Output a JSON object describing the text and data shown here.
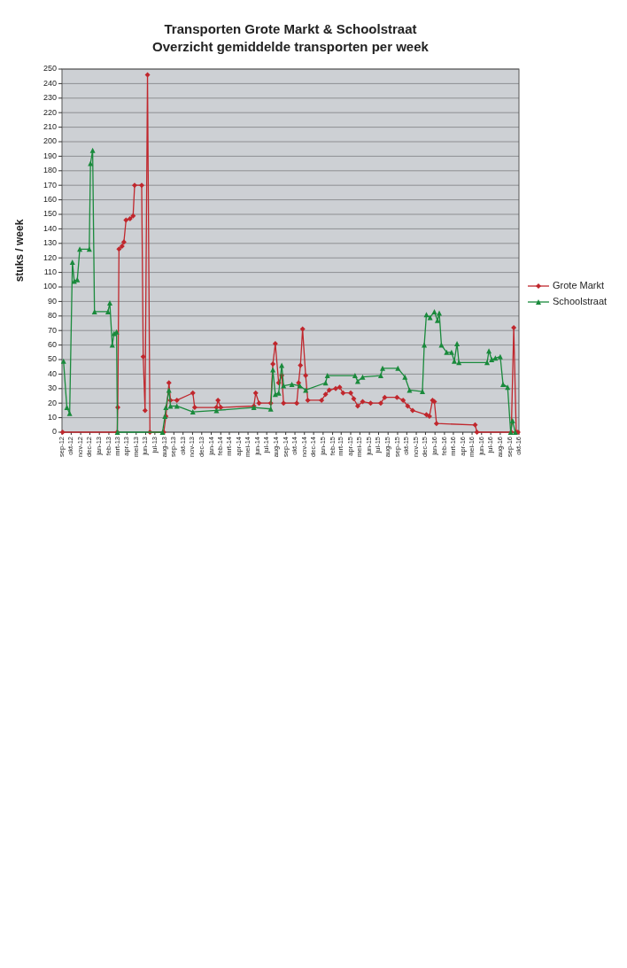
{
  "chart_data": {
    "type": "line",
    "title": "Transporten Grote Markt & Schoolstraat",
    "subtitle": "Overzicht gemiddelde transporten per week",
    "ylabel": "stuks / week",
    "grid": "y",
    "legend": "right",
    "xlim": [
      "2012-09",
      "2016-10"
    ],
    "xticks": [
      {
        "value": "2012-09",
        "label": "sep-12"
      },
      {
        "value": "2012-10",
        "label": "okt-12"
      },
      {
        "value": "2012-11",
        "label": "nov-12"
      },
      {
        "value": "2012-12",
        "label": "dec-12"
      },
      {
        "value": "2013-01",
        "label": "jan-13"
      },
      {
        "value": "2013-02",
        "label": "feb-13"
      },
      {
        "value": "2013-03",
        "label": "mrt-13"
      },
      {
        "value": "2013-04",
        "label": "apr-13"
      },
      {
        "value": "2013-05",
        "label": "mei-13"
      },
      {
        "value": "2013-06",
        "label": "jun-13"
      },
      {
        "value": "2013-07",
        "label": "jul-13"
      },
      {
        "value": "2013-08",
        "label": "aug-13"
      },
      {
        "value": "2013-09",
        "label": "sep-13"
      },
      {
        "value": "2013-10",
        "label": "okt-13"
      },
      {
        "value": "2013-11",
        "label": "nov-13"
      },
      {
        "value": "2013-12",
        "label": "dec-13"
      },
      {
        "value": "2014-01",
        "label": "jan-14"
      },
      {
        "value": "2014-02",
        "label": "feb-14"
      },
      {
        "value": "2014-03",
        "label": "mrt-14"
      },
      {
        "value": "2014-04",
        "label": "apr-14"
      },
      {
        "value": "2014-05",
        "label": "mei-14"
      },
      {
        "value": "2014-06",
        "label": "jun-14"
      },
      {
        "value": "2014-07",
        "label": "jul-14"
      },
      {
        "value": "2014-08",
        "label": "aug-14"
      },
      {
        "value": "2014-09",
        "label": "sep-14"
      },
      {
        "value": "2014-10",
        "label": "okt-14"
      },
      {
        "value": "2014-11",
        "label": "nov-14"
      },
      {
        "value": "2014-12",
        "label": "dec-14"
      },
      {
        "value": "2015-01",
        "label": "jan-15"
      },
      {
        "value": "2015-02",
        "label": "feb-15"
      },
      {
        "value": "2015-03",
        "label": "mrt-15"
      },
      {
        "value": "2015-04",
        "label": "apr-15"
      },
      {
        "value": "2015-05",
        "label": "mei-15"
      },
      {
        "value": "2015-06",
        "label": "jun-15"
      },
      {
        "value": "2015-07",
        "label": "jul-15"
      },
      {
        "value": "2015-08",
        "label": "aug-15"
      },
      {
        "value": "2015-09",
        "label": "sep-15"
      },
      {
        "value": "2015-10",
        "label": "okt-15"
      },
      {
        "value": "2015-11",
        "label": "nov-15"
      },
      {
        "value": "2015-12",
        "label": "dec-15"
      },
      {
        "value": "2016-01",
        "label": "jan-16"
      },
      {
        "value": "2016-02",
        "label": "feb-16"
      },
      {
        "value": "2016-03",
        "label": "mrt-16"
      },
      {
        "value": "2016-04",
        "label": "apr-16"
      },
      {
        "value": "2016-05",
        "label": "mei-16"
      },
      {
        "value": "2016-06",
        "label": "jun-16"
      },
      {
        "value": "2016-07",
        "label": "jul-16"
      },
      {
        "value": "2016-08",
        "label": "aug-16"
      },
      {
        "value": "2016-09",
        "label": "sep-16"
      },
      {
        "value": "2016-10",
        "label": "okt-16"
      }
    ],
    "ylim": [
      0,
      250
    ],
    "yticks": [
      0,
      10,
      20,
      30,
      40,
      50,
      60,
      70,
      80,
      90,
      100,
      110,
      120,
      130,
      140,
      150,
      160,
      170,
      180,
      190,
      200,
      210,
      220,
      230,
      240,
      250
    ],
    "series": [
      {
        "name": "Grote Markt",
        "color": "#c0272d",
        "marker": "diamond",
        "x": [
          "2012-09-03",
          "2013-02-28",
          "2013-03-02",
          "2013-03-06",
          "2013-03-16",
          "2013-03-22",
          "2013-03-29",
          "2013-04-11",
          "2013-04-21",
          "2013-04-26",
          "2013-05-19",
          "2013-05-24",
          "2013-05-30",
          "2013-06-07",
          "2013-06-15",
          "2013-07-30",
          "2013-08-06",
          "2013-08-16",
          "2013-08-21",
          "2013-09-11",
          "2013-11-02",
          "2013-11-08",
          "2014-01-18",
          "2014-01-23",
          "2014-02-01",
          "2014-05-20",
          "2014-05-26",
          "2014-06-06",
          "2014-07-14",
          "2014-07-21",
          "2014-07-29",
          "2014-08-09",
          "2014-08-19",
          "2014-08-25",
          "2014-10-07",
          "2014-10-13",
          "2014-10-19",
          "2014-10-26",
          "2014-11-05",
          "2014-11-12",
          "2014-12-27",
          "2015-01-09",
          "2015-01-21",
          "2015-02-11",
          "2015-02-24",
          "2015-03-07",
          "2015-04-01",
          "2015-04-11",
          "2015-04-24",
          "2015-05-10",
          "2015-06-05",
          "2015-07-08",
          "2015-07-21",
          "2015-08-30",
          "2015-09-19",
          "2015-10-04",
          "2015-10-20",
          "2015-12-04",
          "2015-12-14",
          "2015-12-24",
          "2015-12-30",
          "2016-01-06",
          "2016-05-11",
          "2016-05-17",
          "2016-09-06",
          "2016-09-14",
          "2016-09-22",
          "2016-09-28"
        ],
        "values": [
          0,
          0,
          17,
          126,
          128,
          131,
          146,
          147,
          149,
          170,
          170,
          52,
          15,
          246,
          0,
          0,
          11,
          34,
          22,
          22,
          27,
          17,
          17,
          22,
          17,
          18,
          27,
          20,
          20,
          47,
          61,
          34,
          39,
          20,
          20,
          34,
          46,
          71,
          39,
          22,
          22,
          26,
          29,
          30,
          31,
          27,
          27,
          23,
          18,
          21,
          20,
          20,
          24,
          24,
          22,
          18,
          15,
          12,
          11,
          22,
          21,
          6,
          5,
          0,
          0,
          72,
          0,
          0
        ]
      },
      {
        "name": "Schoolstraat",
        "color": "#1a8a3c",
        "marker": "triangle",
        "x": [
          "2012-09-06",
          "2012-09-17",
          "2012-09-26",
          "2012-10-05",
          "2012-10-11",
          "2012-10-21",
          "2012-10-29",
          "2012-11-29",
          "2012-12-03",
          "2012-12-10",
          "2012-12-16",
          "2013-01-29",
          "2013-02-04",
          "2013-02-12",
          "2013-02-18",
          "2013-02-26",
          "2013-03-01",
          "2013-07-26",
          "2013-08-03",
          "2013-08-06",
          "2013-08-16",
          "2013-08-21",
          "2013-09-11",
          "2013-11-02",
          "2014-01-18",
          "2014-05-20",
          "2014-07-14",
          "2014-07-21",
          "2014-07-29",
          "2014-08-09",
          "2014-08-19",
          "2014-08-25",
          "2014-09-21",
          "2014-10-17",
          "2014-11-05",
          "2015-01-09",
          "2015-01-15",
          "2015-04-15",
          "2015-04-24",
          "2015-05-10",
          "2015-07-08",
          "2015-07-14",
          "2015-09-02",
          "2015-09-25",
          "2015-10-10",
          "2015-11-21",
          "2015-11-27",
          "2015-12-04",
          "2015-12-16",
          "2015-12-30",
          "2016-01-09",
          "2016-01-15",
          "2016-01-22",
          "2016-02-08",
          "2016-02-24",
          "2016-03-04",
          "2016-03-13",
          "2016-03-19",
          "2016-06-19",
          "2016-06-25",
          "2016-07-04",
          "2016-07-16",
          "2016-08-01",
          "2016-08-10",
          "2016-08-25",
          "2016-09-04",
          "2016-09-10",
          "2016-09-19"
        ],
        "values": [
          49,
          17,
          13,
          117,
          104,
          105,
          126,
          126,
          185,
          194,
          83,
          83,
          89,
          60,
          68,
          69,
          0,
          0,
          11,
          17,
          29,
          18,
          18,
          14,
          15,
          17,
          16,
          43,
          26,
          27,
          46,
          32,
          33,
          32,
          29,
          34,
          39,
          39,
          35,
          38,
          39,
          44,
          44,
          38,
          29,
          28,
          60,
          81,
          79,
          83,
          77,
          82,
          60,
          55,
          55,
          49,
          61,
          48,
          48,
          56,
          50,
          51,
          52,
          33,
          31,
          0,
          8,
          0
        ]
      }
    ]
  }
}
